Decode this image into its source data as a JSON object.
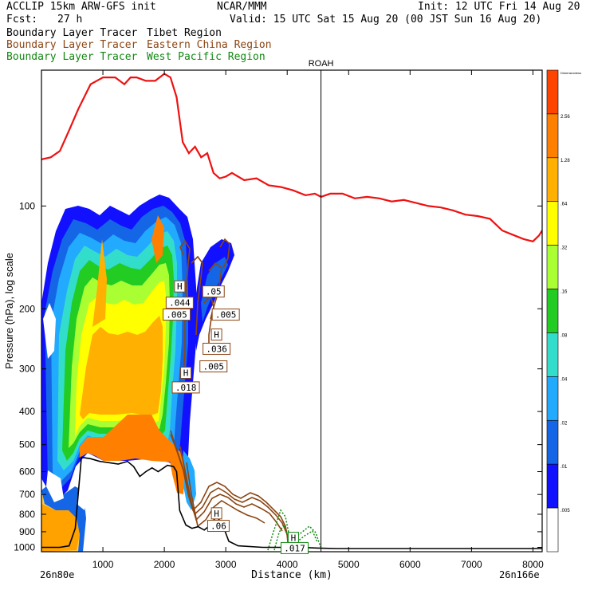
{
  "header": {
    "model": "ACCLIP 15km ARW-GFS init",
    "center": "NCAR/MMM",
    "init": "Init: 12 UTC Fri 14 Aug 20",
    "fcst_label": "Fcst:",
    "fcst_value": "27 h",
    "valid": "Valid: 15 UTC Sat 15 Aug 20 (00 JST Sun 16 Aug 20)"
  },
  "legend": [
    {
      "prefix": "Boundary Layer Tracer",
      "region": "Tibet Region",
      "color": "#000000"
    },
    {
      "prefix": "Boundary Layer Tracer",
      "region": "Eastern China Region",
      "color": "#8b4513"
    },
    {
      "prefix": "Boundary Layer Tracer",
      "region": "West Pacific Region",
      "color": "#118811"
    }
  ],
  "chart_data": {
    "type": "cross-section",
    "xlabel": "Distance (km)",
    "ylabel": "Pressure (hPa), log scale",
    "x_range": [
      0,
      8150
    ],
    "y_range_hpa": [
      1030,
      40
    ],
    "y_scale": "log",
    "x_ticks": [
      1000,
      2000,
      3000,
      4000,
      5000,
      6000,
      7000,
      8000
    ],
    "y_ticks": [
      100,
      200,
      300,
      400,
      500,
      600,
      700,
      800,
      900,
      1000
    ],
    "left_endpoint": "26n80e",
    "right_endpoint": "26n166e",
    "marker": {
      "label": "ROAH",
      "x": 4550
    },
    "tropopause_red": [
      [
        0,
        73
      ],
      [
        150,
        72
      ],
      [
        300,
        69
      ],
      [
        450,
        60
      ],
      [
        600,
        52
      ],
      [
        800,
        44
      ],
      [
        1000,
        42
      ],
      [
        1200,
        42
      ],
      [
        1350,
        44
      ],
      [
        1450,
        42
      ],
      [
        1550,
        42
      ],
      [
        1700,
        43
      ],
      [
        1850,
        43
      ],
      [
        2000,
        41
      ],
      [
        2100,
        42
      ],
      [
        2200,
        48
      ],
      [
        2300,
        65
      ],
      [
        2400,
        70
      ],
      [
        2500,
        67
      ],
      [
        2600,
        72
      ],
      [
        2700,
        70
      ],
      [
        2800,
        80
      ],
      [
        2900,
        83
      ],
      [
        3000,
        82
      ],
      [
        3100,
        80
      ],
      [
        3300,
        84
      ],
      [
        3500,
        83
      ],
      [
        3700,
        87
      ],
      [
        3900,
        88
      ],
      [
        4100,
        90
      ],
      [
        4300,
        93
      ],
      [
        4450,
        92
      ],
      [
        4550,
        94
      ],
      [
        4700,
        92
      ],
      [
        4900,
        92
      ],
      [
        5100,
        95
      ],
      [
        5300,
        94
      ],
      [
        5500,
        95
      ],
      [
        5700,
        97
      ],
      [
        5900,
        96
      ],
      [
        6100,
        98
      ],
      [
        6300,
        100
      ],
      [
        6500,
        101
      ],
      [
        6700,
        103
      ],
      [
        6900,
        106
      ],
      [
        7100,
        107
      ],
      [
        7300,
        109
      ],
      [
        7500,
        118
      ],
      [
        7700,
        122
      ],
      [
        7850,
        125
      ],
      [
        8000,
        127
      ],
      [
        8100,
        122
      ],
      [
        8150,
        118
      ]
    ],
    "terrain_black": [
      [
        0,
        1000
      ],
      [
        300,
        1000
      ],
      [
        450,
        990
      ],
      [
        550,
        880
      ],
      [
        650,
        545
      ],
      [
        800,
        550
      ],
      [
        950,
        560
      ],
      [
        1100,
        565
      ],
      [
        1250,
        570
      ],
      [
        1400,
        560
      ],
      [
        1500,
        580
      ],
      [
        1600,
        620
      ],
      [
        1700,
        600
      ],
      [
        1800,
        585
      ],
      [
        1900,
        600
      ],
      [
        2050,
        575
      ],
      [
        2150,
        580
      ],
      [
        2200,
        600
      ],
      [
        2250,
        780
      ],
      [
        2350,
        860
      ],
      [
        2450,
        880
      ],
      [
        2550,
        870
      ],
      [
        2650,
        890
      ],
      [
        2750,
        860
      ],
      [
        2850,
        810
      ],
      [
        2950,
        860
      ],
      [
        3050,
        960
      ],
      [
        3200,
        990
      ],
      [
        3600,
        1000
      ],
      [
        3900,
        1000
      ],
      [
        4200,
        1000
      ],
      [
        4500,
        1005
      ],
      [
        4800,
        1008
      ],
      [
        5200,
        1008
      ],
      [
        6000,
        1008
      ],
      [
        7000,
        1008
      ],
      [
        8150,
        1008
      ]
    ],
    "colorbar": {
      "labels": [
        "Dimensionless",
        "2.56",
        "1.28",
        ".64",
        ".32",
        ".16",
        ".08",
        ".04",
        ".02",
        ".01",
        ".005"
      ],
      "colors": [
        "#ff4400",
        "#ff8000",
        "#ffb000",
        "#ffff00",
        "#aaff33",
        "#22cc22",
        "#33ddcc",
        "#22aaff",
        "#1466e6",
        "#1111ff",
        "#ffffff"
      ]
    },
    "annotations": [
      {
        "text": "H",
        "x": 2250,
        "p": 172,
        "series": "eastern-china"
      },
      {
        "text": ".044",
        "x": 2250,
        "p": 192,
        "series": "eastern-china"
      },
      {
        "text": ".05",
        "x": 2800,
        "p": 178,
        "series": "eastern-china"
      },
      {
        "text": ".005",
        "x": 2200,
        "p": 208,
        "series": "eastern-china"
      },
      {
        "text": ".005",
        "x": 3000,
        "p": 208,
        "series": "eastern-china"
      },
      {
        "text": "H",
        "x": 2850,
        "p": 238,
        "series": "eastern-china"
      },
      {
        "text": ".036",
        "x": 2850,
        "p": 262,
        "series": "eastern-china"
      },
      {
        "text": ".005",
        "x": 2800,
        "p": 295,
        "series": "eastern-china"
      },
      {
        "text": "H",
        "x": 2350,
        "p": 308,
        "series": "tibet"
      },
      {
        "text": ".018",
        "x": 2350,
        "p": 340,
        "series": "tibet"
      },
      {
        "text": "H",
        "x": 2850,
        "p": 795,
        "series": "eastern-china"
      },
      {
        "text": ".06",
        "x": 2880,
        "p": 865,
        "series": "eastern-china"
      },
      {
        "text": "H",
        "x": 4100,
        "p": 938,
        "series": "west-pacific"
      },
      {
        "text": ".017",
        "x": 4120,
        "p": 1005,
        "series": "west-pacific"
      }
    ]
  }
}
